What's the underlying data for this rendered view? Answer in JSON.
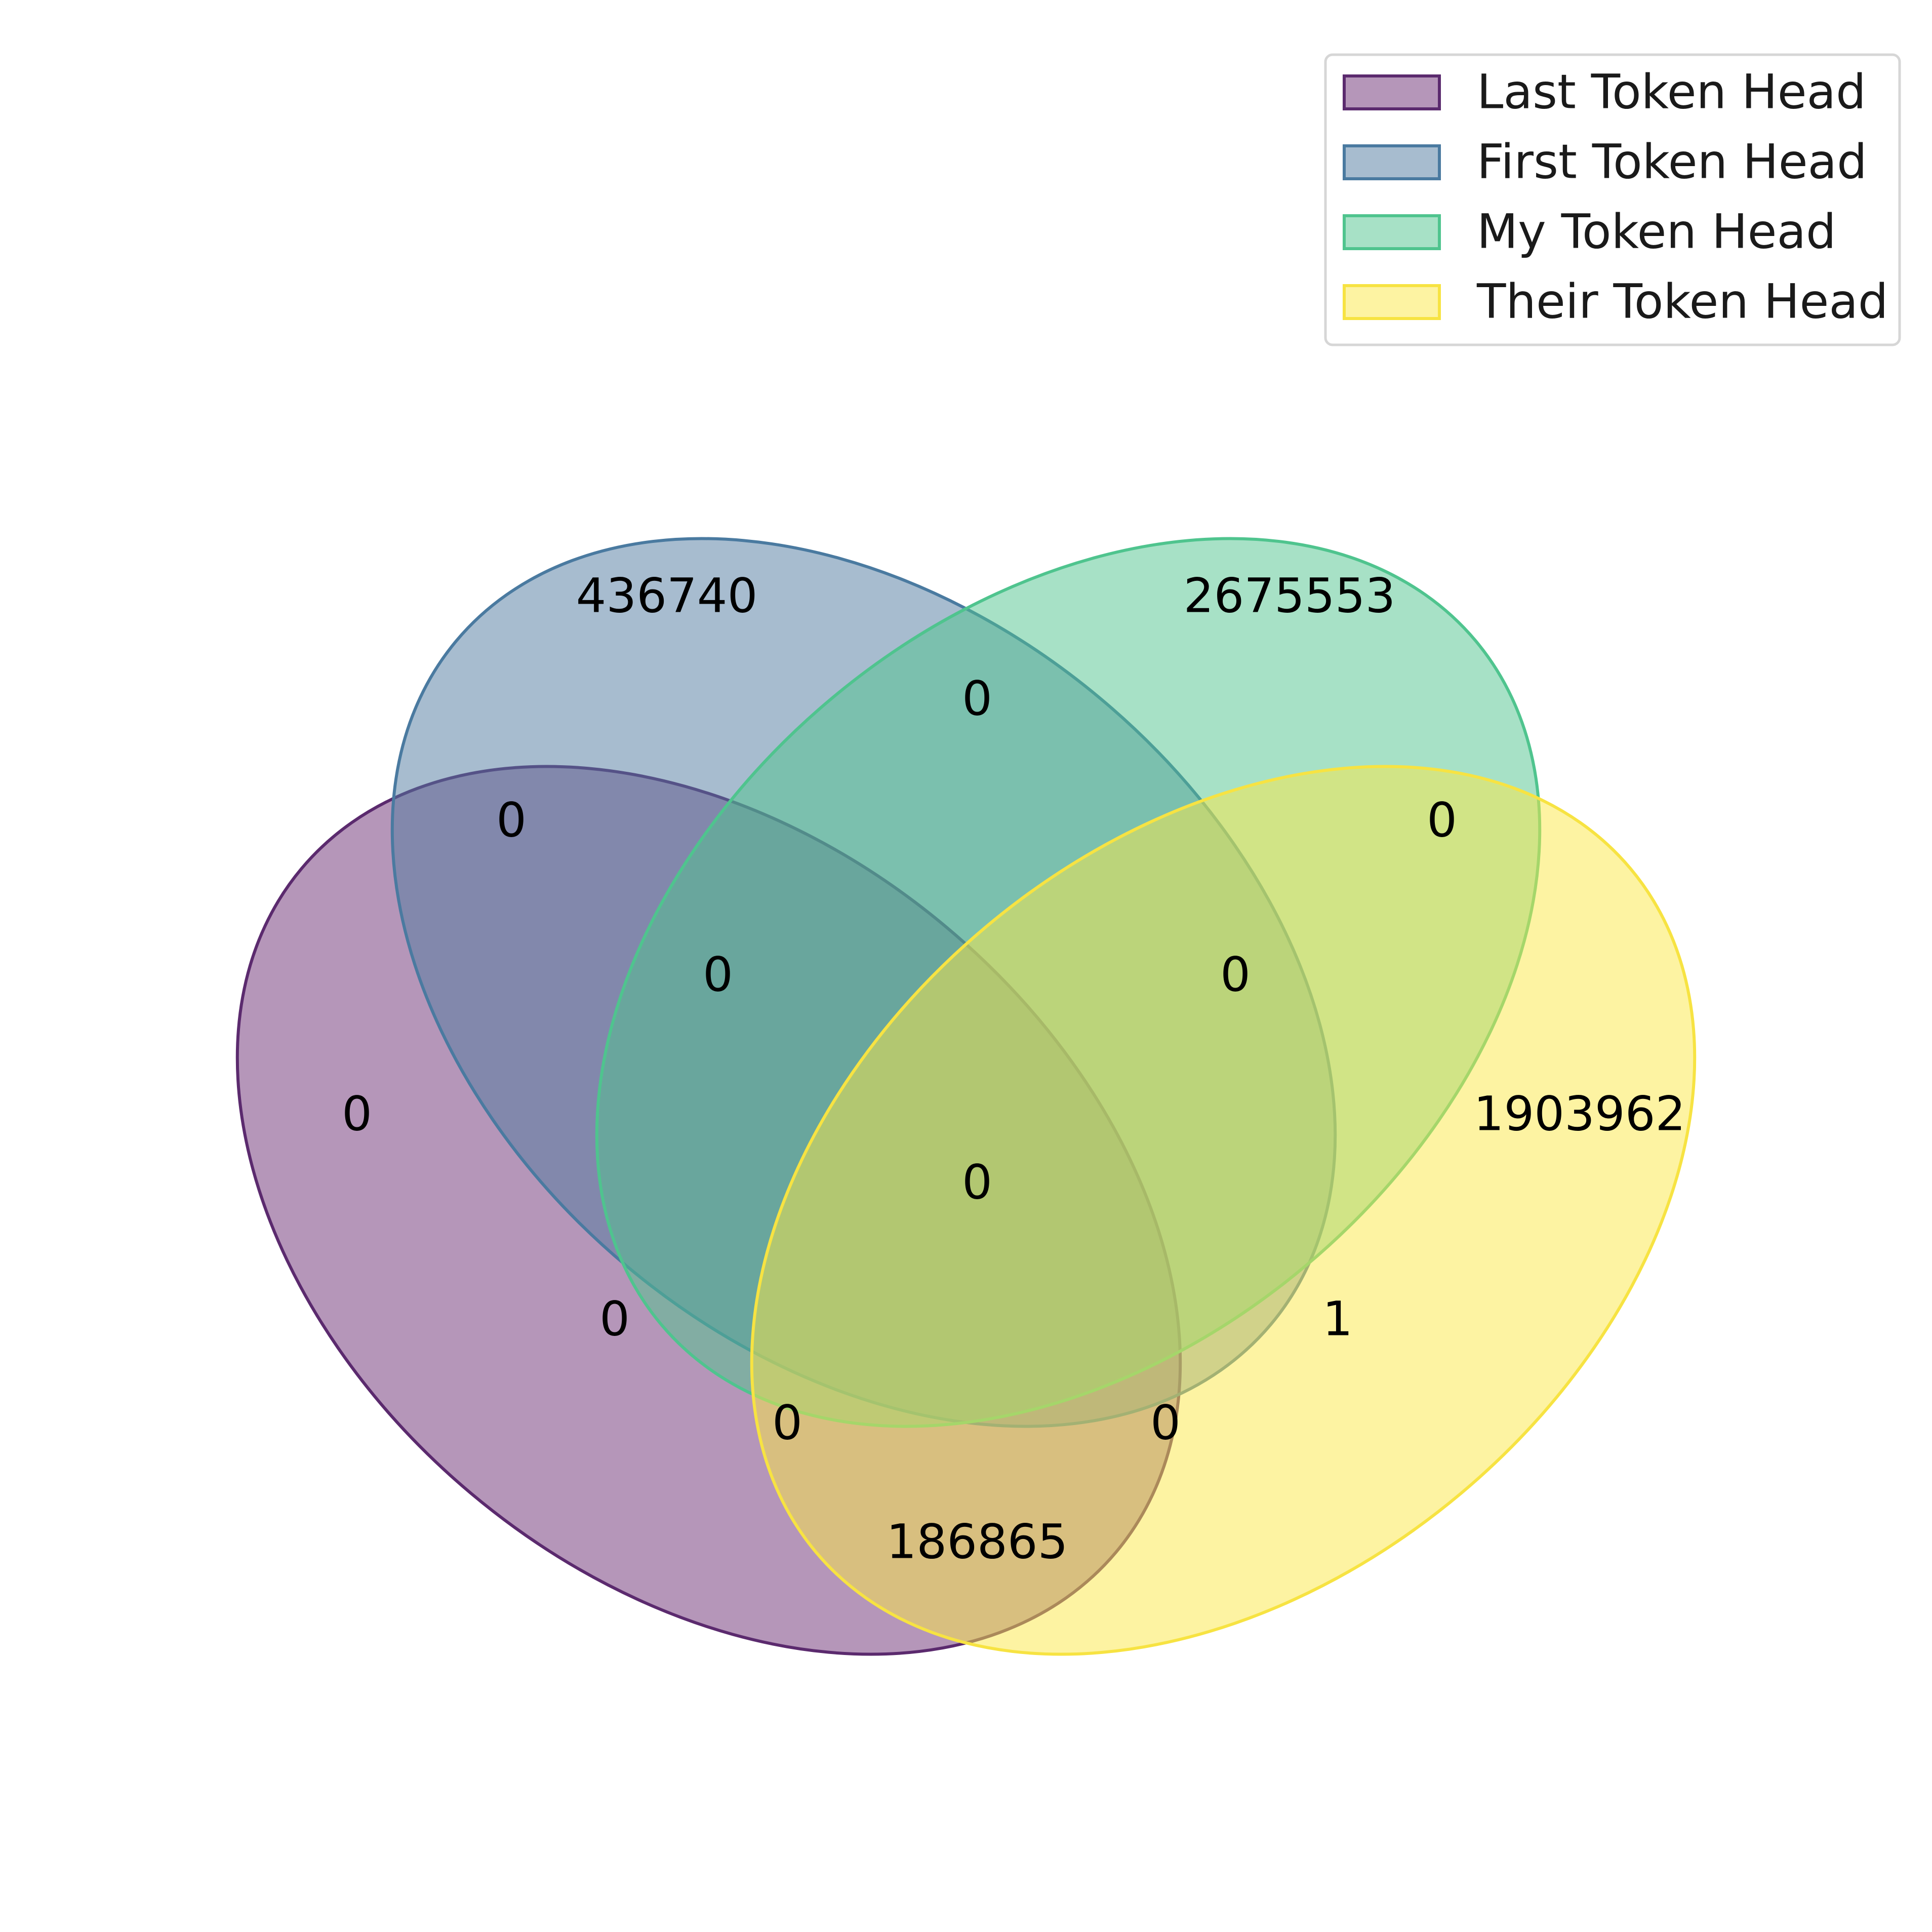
{
  "sets": [
    {
      "key": "last",
      "name": "Last Token Head",
      "fill": "#6b2e74",
      "stroke": "#5b2a6e"
    },
    {
      "key": "first",
      "name": "First Token Head",
      "fill": "#4f7aa0",
      "stroke": "#4a7aa0"
    },
    {
      "key": "my",
      "name": "My Token Head",
      "fill": "#4fc48e",
      "stroke": "#4fc48e"
    },
    {
      "key": "their",
      "name": "Their Token Head",
      "fill": "#fbe845",
      "stroke": "#f7e342"
    }
  ],
  "regions": {
    "first_only": "436740",
    "my_only": "2675553",
    "last_only": "0",
    "their_only": "1903962",
    "first_my": "0",
    "last_first": "0",
    "my_their": "0",
    "last_first_my": "0",
    "first_my_their": "0",
    "all_four": "0",
    "last_my": "0",
    "first_their": "1",
    "last_my_their": "0",
    "last_first_their": "0",
    "last_their": "186865"
  }
}
